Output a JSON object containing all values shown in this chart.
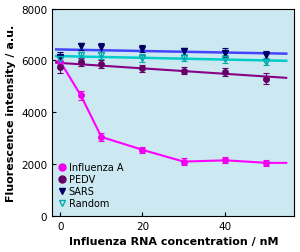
{
  "title": "",
  "xlabel": "Influenza RNA concentration / nM",
  "ylabel": "Fluorescence intensity / a.u.",
  "xlim": [
    -2,
    57
  ],
  "ylim": [
    0,
    8000
  ],
  "xticks": [
    0,
    20,
    40
  ],
  "yticks": [
    0,
    2000,
    4000,
    6000,
    8000
  ],
  "plot_bg": "#cce8f0",
  "fig_bg": "#ffffff",
  "influenzaA": {
    "x": [
      0,
      5,
      10,
      20,
      30,
      40,
      50
    ],
    "y": [
      5950,
      4650,
      3050,
      2550,
      2100,
      2150,
      2050
    ],
    "yerr": [
      130,
      160,
      140,
      120,
      120,
      120,
      110
    ],
    "color": "#ee00ee",
    "marker": "o",
    "markersize": 4,
    "label": "Influenza A"
  },
  "PEDV": {
    "x": [
      0,
      5,
      10,
      20,
      30,
      40,
      50
    ],
    "y": [
      5750,
      5950,
      5850,
      5700,
      5600,
      5550,
      5300
    ],
    "yerr": [
      220,
      160,
      150,
      140,
      130,
      160,
      220
    ],
    "color": "#660066",
    "marker": "o",
    "markersize": 4,
    "label": "PEDV"
  },
  "SARS": {
    "x": [
      0,
      5,
      10,
      20,
      30,
      40,
      50
    ],
    "y": [
      6150,
      6550,
      6500,
      6450,
      6350,
      6300,
      6200
    ],
    "yerr": [
      180,
      140,
      160,
      130,
      130,
      180,
      160
    ],
    "color": "#000066",
    "marker": "v",
    "markersize": 4,
    "label": "SARS",
    "filled": true
  },
  "Random": {
    "x": [
      0,
      5,
      10,
      20,
      30,
      40,
      50
    ],
    "y": [
      6050,
      6200,
      6200,
      6100,
      6100,
      6050,
      5950
    ],
    "yerr": [
      150,
      140,
      130,
      150,
      140,
      160,
      140
    ],
    "color": "#00aaaa",
    "marker": "v",
    "markersize": 4,
    "label": "Random",
    "filled": false
  },
  "line_colors": {
    "influenzaA": "#ff00ff",
    "PEDV": "#880088",
    "SARS": "#4444ff",
    "Random": "#00cccc"
  },
  "xlabel_fontsize": 8,
  "ylabel_fontsize": 8,
  "tick_fontsize": 7.5,
  "legend_fontsize": 7
}
